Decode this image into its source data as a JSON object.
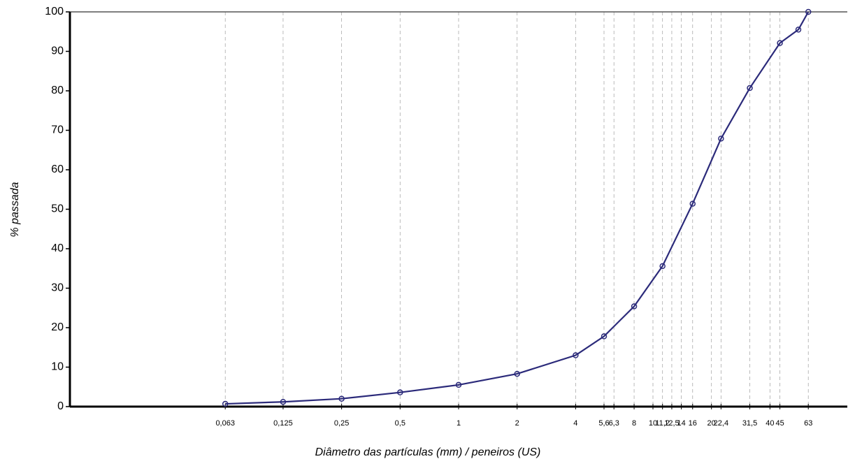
{
  "chart_data": {
    "type": "line",
    "x_label": "Diâmetro das partículas (mm) / peneiros (US)",
    "y_label": "% passada",
    "x_log": true,
    "xlim": [
      0.01,
      100
    ],
    "ylim": [
      0,
      100
    ],
    "yticks": [
      0,
      10,
      20,
      30,
      40,
      50,
      60,
      70,
      80,
      90,
      100
    ],
    "xticks": [
      {
        "value": 0.063,
        "label": "0,063"
      },
      {
        "value": 0.125,
        "label": "0,125"
      },
      {
        "value": 0.25,
        "label": "0,25"
      },
      {
        "value": 0.5,
        "label": "0,5"
      },
      1,
      2,
      4,
      {
        "value": 5.6,
        "label": "5,6"
      },
      {
        "value": 6.3,
        "label": "6,3"
      },
      8,
      10,
      {
        "value": 11.2,
        "label": "11,2"
      },
      {
        "value": 12.5,
        "label": "12,5"
      },
      14,
      16,
      20,
      {
        "value": 22.4,
        "label": "22,4"
      },
      {
        "value": 31.5,
        "label": "31,5"
      },
      40,
      45,
      63
    ],
    "x": [
      0.063,
      0.125,
      0.25,
      0.5,
      1,
      2,
      4,
      5.6,
      8,
      11.2,
      16,
      22.4,
      31.5,
      45,
      56,
      63
    ],
    "series": [
      {
        "color": "#2b2a7a",
        "values": [
          0.7,
          1.2,
          2.0,
          3.6,
          5.5,
          8.3,
          13.0,
          17.8,
          25.4,
          35.6,
          51.4,
          67.9,
          80.7,
          92.1,
          95.5,
          100
        ]
      }
    ]
  }
}
